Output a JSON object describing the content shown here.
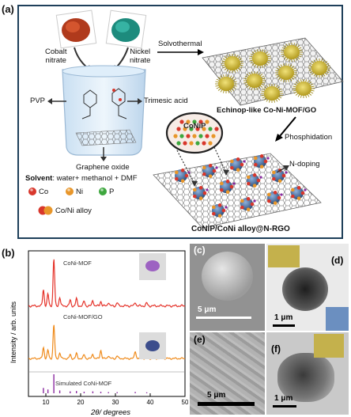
{
  "panel_a": {
    "label": "(a)",
    "cobalt_label": "Cobalt\nnitrate",
    "nickel_label": "Nickel\nnitrate",
    "pvp_label": "PVP",
    "trimesic_label": "Trimesic acid",
    "graphene_label": "Graphene oxide",
    "solvothermal_label": "Solvothermal",
    "echinop_label": "Echinop-like Co-Ni-MOF/GO",
    "phosphidation_label": "Phosphidation",
    "conip_label": "CoNiP",
    "ndoping_label": "N-doping",
    "solvent_bold": "Solvent",
    "solvent_rest": ": water+ methanol + DMF",
    "legend": [
      {
        "symbol": "Co",
        "color": "#d8372c"
      },
      {
        "symbol": "Ni",
        "color": "#e8962a"
      },
      {
        "symbol": "P",
        "color": "#3ea73e"
      }
    ],
    "alloy_label": "Co/Ni alloy",
    "product_label": "CoNiP/CoNi alloy@N-RGO"
  },
  "panel_b": {
    "label": "(b)",
    "chart_data": {
      "type": "line",
      "xlabel": "2θ/ degrees",
      "ylabel": "Intensity / arb. units",
      "xlim": [
        5,
        50
      ],
      "xticks": [
        10,
        20,
        30,
        40,
        50
      ],
      "series": [
        {
          "name": "CoNi-MOF",
          "color": "#e5332a",
          "peaks": [
            [
              9.3,
              0.35
            ],
            [
              10.6,
              0.25
            ],
            [
              12.3,
              1.0
            ],
            [
              14.0,
              0.18
            ],
            [
              17.0,
              0.12
            ],
            [
              18.8,
              0.15
            ],
            [
              21.0,
              0.1
            ],
            [
              23.5,
              0.12
            ],
            [
              25.8,
              0.1
            ],
            [
              28.0,
              0.08
            ],
            [
              30.5,
              0.07
            ],
            [
              35.7,
              0.08
            ],
            [
              39.0,
              0.06
            ]
          ]
        },
        {
          "name": "CoNi-MOF/GO",
          "color": "#ef8a1a",
          "peaks": [
            [
              9.3,
              0.3
            ],
            [
              10.6,
              0.22
            ],
            [
              12.3,
              0.9
            ],
            [
              14.0,
              0.15
            ],
            [
              17.0,
              0.1
            ],
            [
              18.8,
              0.13
            ],
            [
              21.0,
              0.1
            ],
            [
              23.5,
              0.12
            ],
            [
              25.8,
              0.22
            ],
            [
              28.0,
              0.08
            ],
            [
              30.5,
              0.07
            ],
            [
              35.7,
              0.2
            ],
            [
              39.0,
              0.06
            ]
          ]
        },
        {
          "name": "Simulated CoNi-MOF",
          "color": "#8a2aa0",
          "peaks": [
            [
              9.3,
              0.28
            ],
            [
              10.6,
              0.2
            ],
            [
              12.3,
              1.0
            ],
            [
              14.0,
              0.15
            ],
            [
              17.0,
              0.1
            ],
            [
              18.8,
              0.12
            ],
            [
              21.0,
              0.08
            ],
            [
              23.5,
              0.1
            ],
            [
              25.8,
              0.08
            ],
            [
              28.0,
              0.06
            ],
            [
              30.5,
              0.06
            ],
            [
              35.7,
              0.07
            ],
            [
              39.0,
              0.05
            ]
          ]
        }
      ]
    }
  },
  "panel_c": {
    "label": "(c)",
    "scale": "5 μm"
  },
  "panel_d": {
    "label": "(d)",
    "scale": "1 μm"
  },
  "panel_e": {
    "label": "(e)",
    "scale": "5 μm"
  },
  "panel_f": {
    "label": "(f)",
    "scale": "1 μm"
  }
}
